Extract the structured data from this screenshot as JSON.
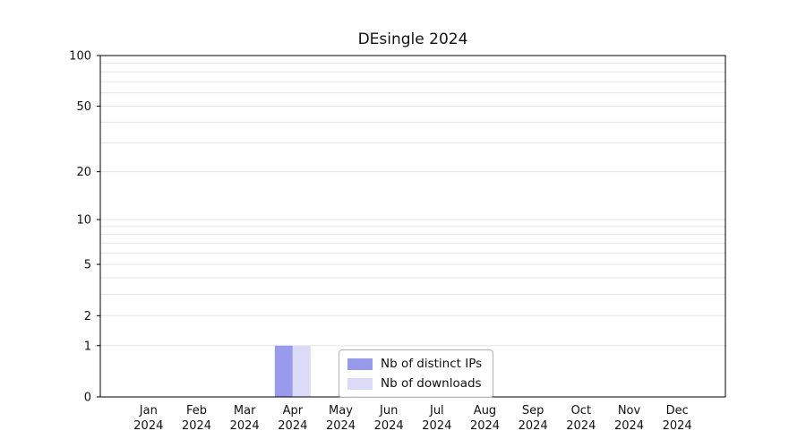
{
  "chart_data": {
    "type": "bar",
    "title": "DEsingle 2024",
    "xlabel": "",
    "ylabel": "",
    "yscale": "log1p",
    "ylim": [
      0,
      100
    ],
    "yticks": [
      0,
      1,
      2,
      5,
      10,
      20,
      50,
      100
    ],
    "minor_gridlines": [
      1,
      2,
      3,
      4,
      5,
      6,
      7,
      8,
      9,
      10,
      20,
      30,
      40,
      50,
      60,
      70,
      80,
      90,
      100
    ],
    "grid": true,
    "legend_position": "bottom-center-inside",
    "categories": [
      "Jan 2024",
      "Feb 2024",
      "Mar 2024",
      "Apr 2024",
      "May 2024",
      "Jun 2024",
      "Jul 2024",
      "Aug 2024",
      "Sep 2024",
      "Oct 2024",
      "Nov 2024",
      "Dec 2024"
    ],
    "series": [
      {
        "name": "Nb of distinct IPs",
        "color": "#9a9aec",
        "values": [
          0,
          0,
          0,
          1,
          0,
          0,
          0,
          0,
          0,
          0,
          0,
          0
        ]
      },
      {
        "name": "Nb of downloads",
        "color": "#dbdbf8",
        "values": [
          0,
          0,
          0,
          1,
          0,
          0,
          0,
          0,
          0,
          0,
          0,
          0
        ]
      }
    ],
    "colors": {
      "gridline": "#e5e5e5",
      "axis": "#000000",
      "text": "#111111"
    }
  }
}
